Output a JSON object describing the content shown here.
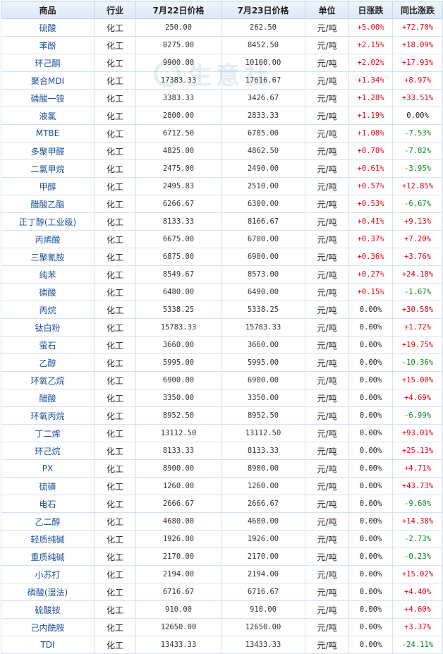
{
  "headers": [
    "商品",
    "行业",
    "7月22日价格",
    "7月23日价格",
    "单位",
    "日涨跌",
    "同比涨跌"
  ],
  "watermark": {
    "text": "生意社",
    "url": "100ppi.com"
  },
  "rows": [
    {
      "name": "硫酸",
      "industry": "化工",
      "p1": "250.00",
      "p2": "262.50",
      "unit": "元/吨",
      "day": "+5.00%",
      "yoy": "+72.70%"
    },
    {
      "name": "苯酚",
      "industry": "化工",
      "p1": "8275.00",
      "p2": "8452.50",
      "unit": "元/吨",
      "day": "+2.15%",
      "yoy": "+18.09%"
    },
    {
      "name": "环己酮",
      "industry": "化工",
      "p1": "9900.00",
      "p2": "10100.00",
      "unit": "元/吨",
      "day": "+2.02%",
      "yoy": "+17.93%"
    },
    {
      "name": "聚合MDI",
      "industry": "化工",
      "p1": "17383.33",
      "p2": "17616.67",
      "unit": "元/吨",
      "day": "+1.34%",
      "yoy": "+8.97%"
    },
    {
      "name": "磷酸一铵",
      "industry": "化工",
      "p1": "3383.33",
      "p2": "3426.67",
      "unit": "元/吨",
      "day": "+1.28%",
      "yoy": "+33.51%"
    },
    {
      "name": "液氯",
      "industry": "化工",
      "p1": "2800.00",
      "p2": "2833.33",
      "unit": "元/吨",
      "day": "+1.19%",
      "yoy": "0.00%"
    },
    {
      "name": "MTBE",
      "industry": "化工",
      "p1": "6712.50",
      "p2": "6785.00",
      "unit": "元/吨",
      "day": "+1.08%",
      "yoy": "-7.53%"
    },
    {
      "name": "多聚甲醛",
      "industry": "化工",
      "p1": "4825.00",
      "p2": "4862.50",
      "unit": "元/吨",
      "day": "+0.78%",
      "yoy": "-7.82%"
    },
    {
      "name": "二氯甲烷",
      "industry": "化工",
      "p1": "2475.00",
      "p2": "2490.00",
      "unit": "元/吨",
      "day": "+0.61%",
      "yoy": "-3.95%"
    },
    {
      "name": "甲醇",
      "industry": "化工",
      "p1": "2495.83",
      "p2": "2510.00",
      "unit": "元/吨",
      "day": "+0.57%",
      "yoy": "+12.85%"
    },
    {
      "name": "醋酸乙酯",
      "industry": "化工",
      "p1": "6266.67",
      "p2": "6300.00",
      "unit": "元/吨",
      "day": "+0.53%",
      "yoy": "-6.67%"
    },
    {
      "name": "正丁醇(工业级)",
      "industry": "化工",
      "p1": "8133.33",
      "p2": "8166.67",
      "unit": "元/吨",
      "day": "+0.41%",
      "yoy": "+9.13%"
    },
    {
      "name": "丙烯酸",
      "industry": "化工",
      "p1": "6675.00",
      "p2": "6700.00",
      "unit": "元/吨",
      "day": "+0.37%",
      "yoy": "+7.20%"
    },
    {
      "name": "三聚氰胺",
      "industry": "化工",
      "p1": "6875.00",
      "p2": "6900.00",
      "unit": "元/吨",
      "day": "+0.36%",
      "yoy": "+3.76%"
    },
    {
      "name": "纯苯",
      "industry": "化工",
      "p1": "8549.67",
      "p2": "8573.00",
      "unit": "元/吨",
      "day": "+0.27%",
      "yoy": "+24.18%"
    },
    {
      "name": "磷酸",
      "industry": "化工",
      "p1": "6480.00",
      "p2": "6490.00",
      "unit": "元/吨",
      "day": "+0.15%",
      "yoy": "-1.67%"
    },
    {
      "name": "丙烷",
      "industry": "化工",
      "p1": "5338.25",
      "p2": "5338.25",
      "unit": "元/吨",
      "day": "0.00%",
      "yoy": "+30.58%"
    },
    {
      "name": "钛白粉",
      "industry": "化工",
      "p1": "15783.33",
      "p2": "15783.33",
      "unit": "元/吨",
      "day": "0.00%",
      "yoy": "+1.72%"
    },
    {
      "name": "萤石",
      "industry": "化工",
      "p1": "3660.00",
      "p2": "3660.00",
      "unit": "元/吨",
      "day": "0.00%",
      "yoy": "+19.75%"
    },
    {
      "name": "乙醇",
      "industry": "化工",
      "p1": "5995.00",
      "p2": "5995.00",
      "unit": "元/吨",
      "day": "0.00%",
      "yoy": "-10.36%"
    },
    {
      "name": "环氧乙烷",
      "industry": "化工",
      "p1": "6900.00",
      "p2": "6900.00",
      "unit": "元/吨",
      "day": "0.00%",
      "yoy": "+15.00%"
    },
    {
      "name": "醋酸",
      "industry": "化工",
      "p1": "3350.00",
      "p2": "3350.00",
      "unit": "元/吨",
      "day": "0.00%",
      "yoy": "+4.69%"
    },
    {
      "name": "环氧丙烷",
      "industry": "化工",
      "p1": "8952.50",
      "p2": "8952.50",
      "unit": "元/吨",
      "day": "0.00%",
      "yoy": "-6.99%"
    },
    {
      "name": "丁二烯",
      "industry": "化工",
      "p1": "13112.50",
      "p2": "13112.50",
      "unit": "元/吨",
      "day": "0.00%",
      "yoy": "+93.01%"
    },
    {
      "name": "环己烷",
      "industry": "化工",
      "p1": "8133.33",
      "p2": "8133.33",
      "unit": "元/吨",
      "day": "0.00%",
      "yoy": "+25.13%"
    },
    {
      "name": "PX",
      "industry": "化工",
      "p1": "8900.00",
      "p2": "8900.00",
      "unit": "元/吨",
      "day": "0.00%",
      "yoy": "+4.71%"
    },
    {
      "name": "硫磺",
      "industry": "化工",
      "p1": "1260.00",
      "p2": "1260.00",
      "unit": "元/吨",
      "day": "0.00%",
      "yoy": "+43.73%"
    },
    {
      "name": "电石",
      "industry": "化工",
      "p1": "2666.67",
      "p2": "2666.67",
      "unit": "元/吨",
      "day": "0.00%",
      "yoy": "-9.60%"
    },
    {
      "name": "乙二醇",
      "industry": "化工",
      "p1": "4680.00",
      "p2": "4680.00",
      "unit": "元/吨",
      "day": "0.00%",
      "yoy": "+14.38%"
    },
    {
      "name": "轻质纯碱",
      "industry": "化工",
      "p1": "1926.00",
      "p2": "1926.00",
      "unit": "元/吨",
      "day": "0.00%",
      "yoy": "-2.73%"
    },
    {
      "name": "重质纯碱",
      "industry": "化工",
      "p1": "2170.00",
      "p2": "2170.00",
      "unit": "元/吨",
      "day": "0.00%",
      "yoy": "-0.23%"
    },
    {
      "name": "小苏打",
      "industry": "化工",
      "p1": "2194.00",
      "p2": "2194.00",
      "unit": "元/吨",
      "day": "0.00%",
      "yoy": "+15.02%"
    },
    {
      "name": "磷酸(湿法)",
      "industry": "化工",
      "p1": "6716.67",
      "p2": "6716.67",
      "unit": "元/吨",
      "day": "0.00%",
      "yoy": "+4.40%"
    },
    {
      "name": "硫酸铵",
      "industry": "化工",
      "p1": "910.00",
      "p2": "910.00",
      "unit": "元/吨",
      "day": "0.00%",
      "yoy": "+4.60%"
    },
    {
      "name": "己内酰胺",
      "industry": "化工",
      "p1": "12650.00",
      "p2": "12650.00",
      "unit": "元/吨",
      "day": "0.00%",
      "yoy": "+3.37%"
    },
    {
      "name": "TDI",
      "industry": "化工",
      "p1": "13433.33",
      "p2": "13433.33",
      "unit": "元/吨",
      "day": "0.00%",
      "yoy": "-24.11%"
    }
  ]
}
